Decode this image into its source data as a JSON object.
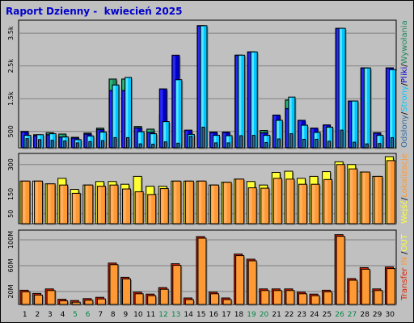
{
  "title": "Raport Dzienny -  kwiecień 2025",
  "colors": {
    "visits": "#1E8A5E",
    "visits_hi": "#2FC47F",
    "pages": "#0000CC",
    "pages_hi": "#3A3AFF",
    "files": "#00C8FF",
    "files_hi": "#80F0FF",
    "hits": "#2B6BA8",
    "out": "#FFFF33",
    "in": "#FF9933",
    "in_edge": "#CC5500",
    "transfer": "#DD2200",
    "transfer_hi": "#FF4422",
    "weekend": "#008844",
    "day": "#000000",
    "grid": "#808080",
    "panel_bg": "#C0C0C0"
  },
  "chart_data": [
    {
      "type": "bar",
      "title": "",
      "categories": [
        "1",
        "2",
        "3",
        "4",
        "5",
        "6",
        "7",
        "8",
        "9",
        "10",
        "11",
        "12",
        "13",
        "14",
        "15",
        "16",
        "17",
        "18",
        "19",
        "20",
        "21",
        "22",
        "23",
        "24",
        "25",
        "26",
        "27",
        "28",
        "29",
        "30"
      ],
      "weekend_days": [
        "5",
        "6",
        "12",
        "13",
        "19",
        "20",
        "26",
        "27"
      ],
      "yticks": [
        500,
        1500,
        2500,
        3500
      ],
      "ytick_labels": [
        "500",
        "1.5k",
        "2.5k",
        "3.5k"
      ],
      "ylim": [
        0,
        3800
      ],
      "right_label": {
        "parts": [
          {
            "text": "Odsłony",
            "color": "#2B6BA8"
          },
          {
            "text": "/",
            "color": "#000000"
          },
          {
            "text": "Strony",
            "color": "#00C8FF"
          },
          {
            "text": "/",
            "color": "#000000"
          },
          {
            "text": "Pliki",
            "color": "#0000CC"
          },
          {
            "text": "/",
            "color": "#000000"
          },
          {
            "text": "Wywołania",
            "color": "#1E8A5E"
          }
        ]
      },
      "series": [
        {
          "name": "Odsłony",
          "values": [
            280,
            250,
            230,
            210,
            150,
            190,
            220,
            310,
            310,
            120,
            110,
            180,
            140,
            350,
            630,
            150,
            150,
            370,
            380,
            160,
            270,
            430,
            260,
            260,
            200,
            540,
            170,
            120,
            130,
            310
          ]
        },
        {
          "name": "Strony",
          "values": [
            490,
            370,
            400,
            330,
            300,
            420,
            560,
            1750,
            1750,
            610,
            470,
            1800,
            2830,
            540,
            3730,
            470,
            470,
            2830,
            2930,
            460,
            1000,
            1200,
            840,
            600,
            700,
            3650,
            1430,
            2440,
            450,
            2440
          ]
        },
        {
          "name": "Pliki",
          "values": [
            380,
            400,
            430,
            330,
            250,
            360,
            480,
            1920,
            2150,
            490,
            430,
            800,
            2080,
            410,
            3730,
            380,
            370,
            2830,
            2930,
            380,
            840,
            1550,
            690,
            470,
            630,
            3650,
            1430,
            2440,
            380,
            2390
          ]
        },
        {
          "name": "Wywołania",
          "values": [
            500,
            400,
            460,
            420,
            320,
            450,
            600,
            2100,
            2100,
            650,
            570,
            1000,
            2700,
            530,
            3730,
            480,
            480,
            2830,
            2930,
            530,
            880,
            1460,
            800,
            600,
            670,
            3650,
            1430,
            2440,
            460,
            2440
          ]
        }
      ]
    },
    {
      "type": "bar",
      "title": "",
      "categories": [
        "1",
        "2",
        "3",
        "4",
        "5",
        "6",
        "7",
        "8",
        "9",
        "10",
        "11",
        "12",
        "13",
        "14",
        "15",
        "16",
        "17",
        "18",
        "19",
        "20",
        "21",
        "22",
        "23",
        "24",
        "25",
        "26",
        "27",
        "28",
        "29",
        "30"
      ],
      "yticks": [
        50,
        150,
        300
      ],
      "ytick_labels": [
        "50",
        "150",
        "300"
      ],
      "ylim": [
        0,
        340
      ],
      "right_label": {
        "parts": [
          {
            "text": "Wejść",
            "color": "#FFFF33"
          },
          {
            "text": "/",
            "color": "#000000"
          },
          {
            "text": "Lokalizacje",
            "color": "#FF9933"
          }
        ]
      },
      "series": [
        {
          "name": "Wejść",
          "values": [
            216,
            216,
            202,
            230,
            174,
            196,
            214,
            214,
            200,
            240,
            190,
            190,
            216,
            216,
            216,
            196,
            210,
            226,
            214,
            196,
            260,
            266,
            230,
            240,
            264,
            314,
            300,
            262,
            240,
            340
          ]
        },
        {
          "name": "Lokalizacje",
          "values": [
            216,
            216,
            202,
            196,
            154,
            196,
            190,
            196,
            176,
            162,
            148,
            178,
            216,
            216,
            216,
            196,
            210,
            226,
            182,
            180,
            230,
            226,
            200,
            200,
            224,
            300,
            278,
            262,
            240,
            320
          ]
        }
      ]
    },
    {
      "type": "bar",
      "title": "",
      "categories": [
        "1",
        "2",
        "3",
        "4",
        "5",
        "6",
        "7",
        "8",
        "9",
        "10",
        "11",
        "12",
        "13",
        "14",
        "15",
        "16",
        "17",
        "18",
        "19",
        "20",
        "21",
        "22",
        "23",
        "24",
        "25",
        "26",
        "27",
        "28",
        "29",
        "30"
      ],
      "yticks": [
        20,
        60,
        100
      ],
      "ytick_labels": [
        "20M",
        "60M",
        "100M"
      ],
      "ylim": [
        0,
        110
      ],
      "right_label": {
        "parts": [
          {
            "text": "Transfer",
            "color": "#DD2200"
          },
          {
            "text": " IN ",
            "color": "#FF9933"
          },
          {
            "text": "/",
            "color": "#000000"
          },
          {
            "text": "OUT",
            "color": "#FFFF33"
          }
        ]
      },
      "series": [
        {
          "name": "Transfer",
          "values": [
            22,
            17,
            24,
            8,
            6,
            9,
            11,
            64,
            42,
            19,
            16,
            26,
            63,
            10,
            105,
            19,
            10,
            78,
            70,
            24,
            24,
            24,
            19,
            16,
            22,
            108,
            40,
            57,
            24,
            58
          ]
        }
      ]
    }
  ]
}
